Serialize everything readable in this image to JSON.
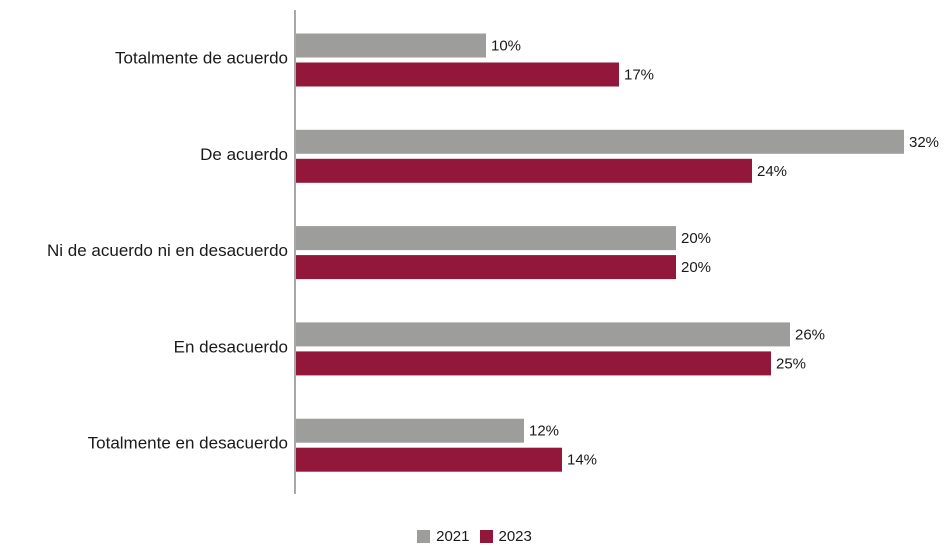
{
  "chart_data": {
    "type": "bar",
    "orientation": "horizontal",
    "categories": [
      "Totalmente de acuerdo",
      "De acuerdo",
      "Ni de acuerdo ni en desacuerdo",
      "En desacuerdo",
      "Totalmente en desacuerdo"
    ],
    "series": [
      {
        "name": "2021",
        "color": "#9d9d9c",
        "values": [
          10,
          32,
          20,
          26,
          12
        ],
        "labels": [
          "10%",
          "32%",
          "20%",
          "26%",
          "12%"
        ]
      },
      {
        "name": "2023",
        "color": "#93173a",
        "values": [
          17,
          24,
          20,
          25,
          14
        ],
        "labels": [
          "17%",
          "24%",
          "20%",
          "25%",
          "14%"
        ]
      }
    ],
    "value_unit": "%",
    "xlim": [
      0,
      32
    ],
    "grid": false,
    "legend_position": "bottom-center",
    "title": "",
    "xlabel": "",
    "ylabel": ""
  }
}
